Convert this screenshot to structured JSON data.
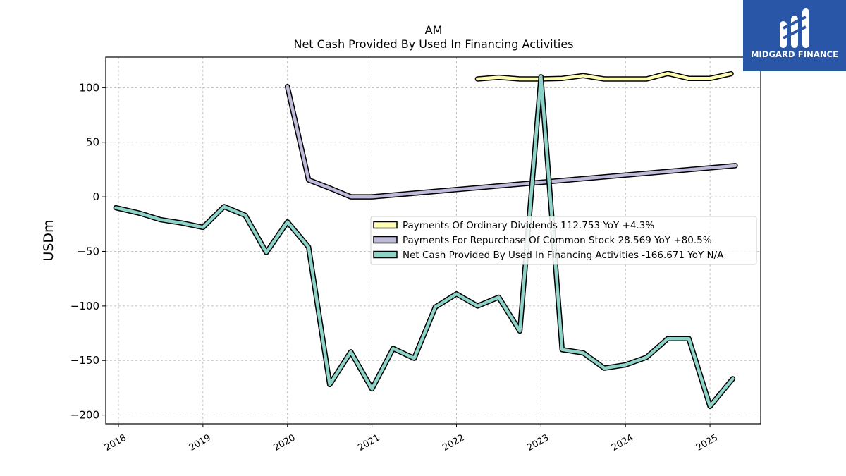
{
  "brand": {
    "name": "MIDGARD FINANCE",
    "logo_color": "#2a56a8"
  },
  "chart_data": {
    "type": "line",
    "title": "AM",
    "subtitle": "Net Cash Provided By Used In Financing Activities",
    "ylabel": "USDm",
    "xlabel": "",
    "ylim": [
      -208,
      128
    ],
    "xlim": [
      2017.85,
      2025.6
    ],
    "yticks": [
      100,
      50,
      0,
      -50,
      -100,
      -150,
      -200
    ],
    "ytick_labels": [
      "100",
      "50",
      "0",
      "−50",
      "−100",
      "−150",
      "−200"
    ],
    "xticks": [
      2018,
      2019,
      2020,
      2021,
      2022,
      2023,
      2024,
      2025
    ],
    "xtick_labels": [
      "2018",
      "2019",
      "2020",
      "2021",
      "2022",
      "2023",
      "2024",
      "2025"
    ],
    "grid": true,
    "legend_position": "center-right",
    "series": [
      {
        "name": "Payments Of Ordinary Dividends",
        "legend_label": "Payments Of Ordinary Dividends  112.753 YoY +4.3%",
        "color": "#ffffb3",
        "x": [
          2022.25,
          2022.5,
          2022.75,
          2023.0,
          2023.25,
          2023.5,
          2023.75,
          2024.0,
          2024.25,
          2024.5,
          2024.75,
          2025.0,
          2025.25
        ],
        "y": [
          108,
          109.5,
          108,
          108,
          108.5,
          111,
          108,
          108,
          108,
          113,
          108.5,
          108.5,
          112.75
        ]
      },
      {
        "name": "Payments For Repurchase Of Common Stock",
        "legend_label": "Payments For Repurchase Of Common Stock  28.569 YoY +80.5%",
        "color": "#bebada",
        "x": [
          2020.0,
          2020.25,
          2020.5,
          2020.75,
          2021.0,
          2025.3
        ],
        "y": [
          101,
          15.5,
          8,
          0,
          0,
          28.57
        ]
      },
      {
        "name": "Net Cash Provided By Used In Financing Activities",
        "legend_label": "Net Cash Provided By Used In Financing Activities  -166.671 YoY N/A",
        "color": "#8dd3c7",
        "x": [
          2017.97,
          2018.25,
          2018.5,
          2018.75,
          2019.0,
          2019.25,
          2019.5,
          2019.75,
          2020.0,
          2020.25,
          2020.5,
          2020.75,
          2021.0,
          2021.25,
          2021.5,
          2021.75,
          2022.0,
          2022.25,
          2022.5,
          2022.75,
          2023.0,
          2023.25,
          2023.5,
          2023.75,
          2024.0,
          2024.25,
          2024.5,
          2024.75,
          2025.0,
          2025.27
        ],
        "y": [
          -10,
          -15,
          -21,
          -24,
          -28,
          -9,
          -17,
          -51,
          -23,
          -46,
          -172,
          -142,
          -176,
          -139,
          -148,
          -101,
          -89,
          -100,
          -92,
          -123,
          110,
          -140,
          -143,
          -157,
          -154,
          -147,
          -130,
          -130,
          -192,
          -166.67
        ]
      }
    ]
  }
}
